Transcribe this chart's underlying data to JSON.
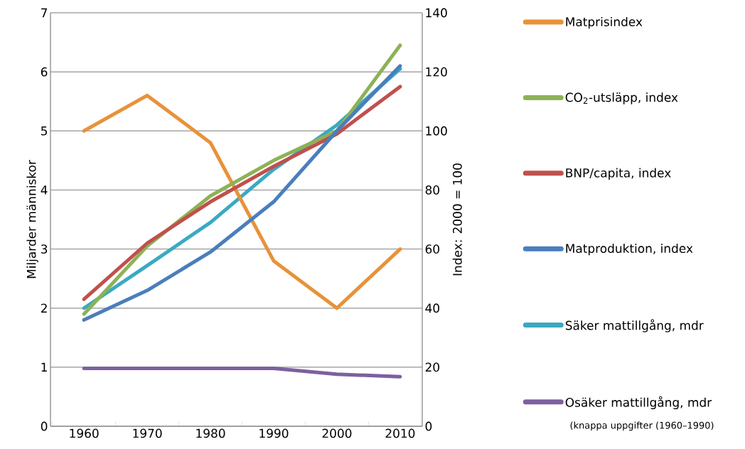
{
  "chart_data": {
    "type": "line",
    "ylabel": "Miljarder människor",
    "y2label": "Index: 2000 = 100",
    "categories": [
      "1960",
      "1970",
      "1980",
      "1990",
      "2000",
      "2010"
    ],
    "series": [
      {
        "name": "Matprisindex",
        "color": "#e8923a",
        "axis": "y2",
        "values": [
          100,
          112,
          96,
          56,
          40,
          60
        ]
      },
      {
        "name": "CO$_{2}$-utsläpp, index",
        "color": "#8db255",
        "axis": "y2",
        "values": [
          38,
          61,
          78,
          90,
          100,
          129
        ]
      },
      {
        "name": "BNP/capita, index",
        "color": "#c0504d",
        "axis": "y2",
        "values": [
          43,
          62,
          76,
          88,
          99,
          115
        ]
      },
      {
        "name": "Matproduktion, index",
        "color": "#4a7ebb",
        "axis": "y2",
        "values": [
          36,
          46,
          59,
          76,
          100,
          122
        ]
      },
      {
        "name": "Säker mattillgång, mdr",
        "color": "#3aa9c4",
        "values": [
          2.0,
          2.72,
          3.45,
          4.35,
          5.1,
          6.05
        ]
      },
      {
        "name": "Osäker mattillgång, mdr",
        "color": "#7d60a0",
        "values": [
          0.98,
          0.98,
          0.98,
          0.98,
          0.88,
          0.84
        ]
      }
    ],
    "ylim": [
      0,
      7
    ],
    "yticks": [
      0,
      1,
      2,
      3,
      4,
      5,
      6,
      7
    ],
    "y2lim": [
      0,
      140
    ],
    "y2ticks": [
      0,
      20,
      40,
      60,
      80,
      100,
      120,
      140
    ],
    "grid": "y",
    "legend": "right",
    "marker": "none",
    "line_style": "solid",
    "annotations": [
      "(knappa uppgifter (1960–1990)"
    ]
  }
}
